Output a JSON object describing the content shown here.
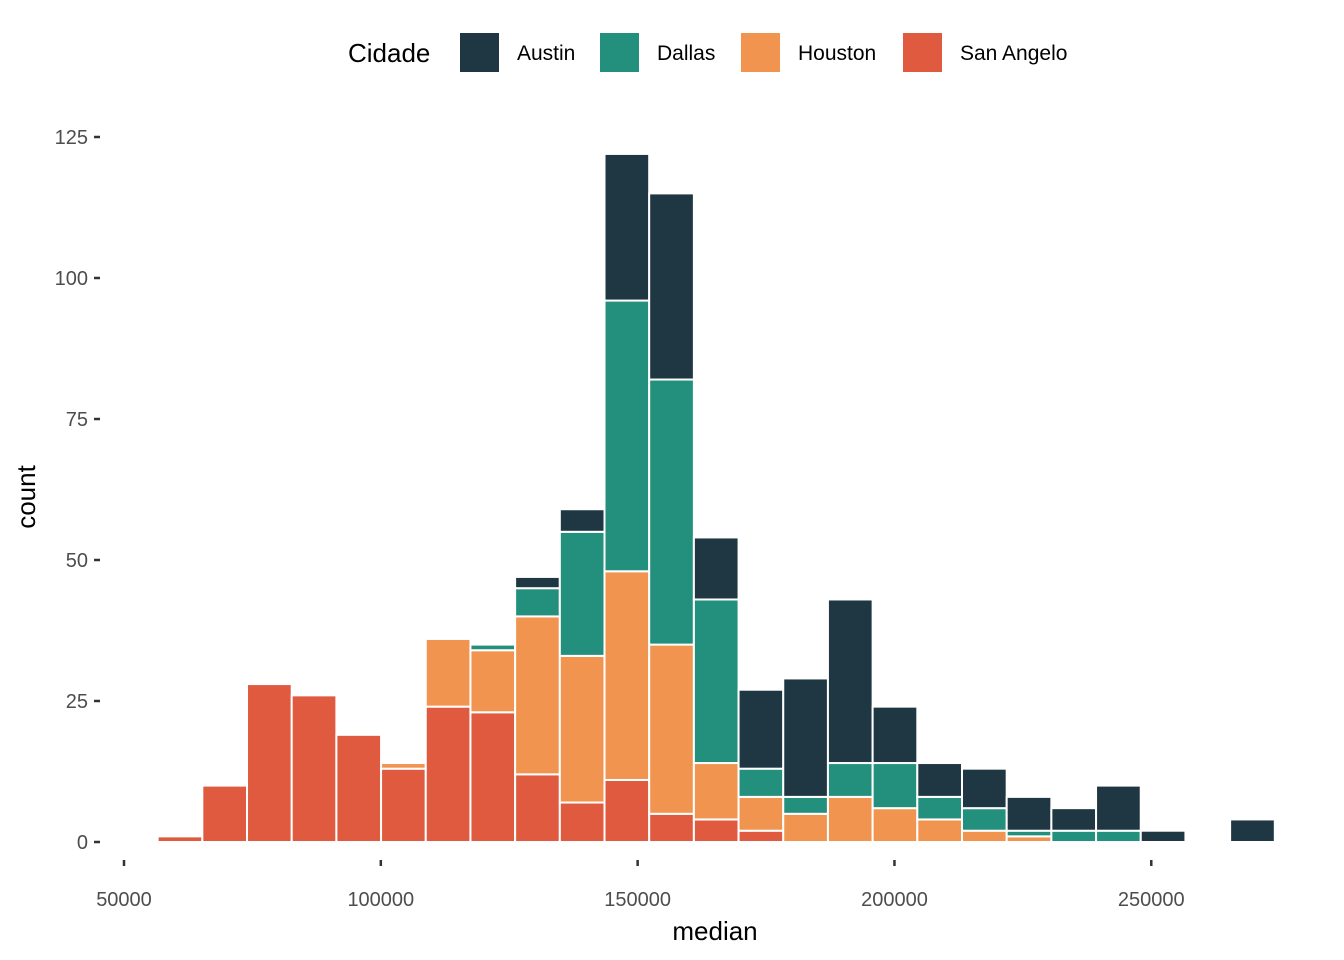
{
  "chart_data": {
    "type": "bar",
    "stacked": true,
    "histogram": true,
    "xlabel": "median",
    "ylabel": "count",
    "xlim": [
      50000,
      275000
    ],
    "ylim": [
      0,
      125
    ],
    "x_ticks": [
      50000,
      100000,
      150000,
      200000,
      250000
    ],
    "y_ticks": [
      0,
      25,
      50,
      75,
      100,
      125
    ],
    "grid": false,
    "legend": {
      "title": "Cidade",
      "position": "top"
    },
    "bin_width": 8700,
    "bins": [
      60900,
      69600,
      78300,
      87000,
      95700,
      104400,
      113100,
      121800,
      130500,
      139200,
      147900,
      156600,
      165300,
      174000,
      182700,
      191400,
      200100,
      208800,
      217500,
      226200,
      234900,
      243600,
      252300,
      261000,
      269700
    ],
    "series": [
      {
        "name": "San Angelo",
        "color": "#E05A40",
        "values": [
          1,
          10,
          28,
          26,
          19,
          13,
          24,
          23,
          12,
          7,
          11,
          5,
          4,
          2,
          0,
          0,
          0,
          0,
          0,
          0,
          0,
          0,
          0,
          0,
          0
        ]
      },
      {
        "name": "Houston",
        "color": "#F0944F",
        "values": [
          0,
          0,
          0,
          0,
          0,
          1,
          12,
          11,
          28,
          26,
          37,
          30,
          10,
          6,
          5,
          8,
          6,
          4,
          2,
          1,
          0,
          0,
          0,
          0,
          0
        ]
      },
      {
        "name": "Dallas",
        "color": "#23907E",
        "values": [
          0,
          0,
          0,
          0,
          0,
          0,
          0,
          1,
          5,
          22,
          48,
          47,
          29,
          5,
          3,
          6,
          8,
          4,
          4,
          1,
          2,
          2,
          0,
          0,
          0
        ]
      },
      {
        "name": "Austin",
        "color": "#1F3643",
        "values": [
          0,
          0,
          0,
          0,
          0,
          0,
          0,
          0,
          2,
          4,
          26,
          33,
          11,
          14,
          21,
          29,
          10,
          6,
          7,
          6,
          4,
          8,
          2,
          0,
          4
        ]
      }
    ],
    "legend_order": [
      "Austin",
      "Dallas",
      "Houston",
      "San Angelo"
    ]
  }
}
